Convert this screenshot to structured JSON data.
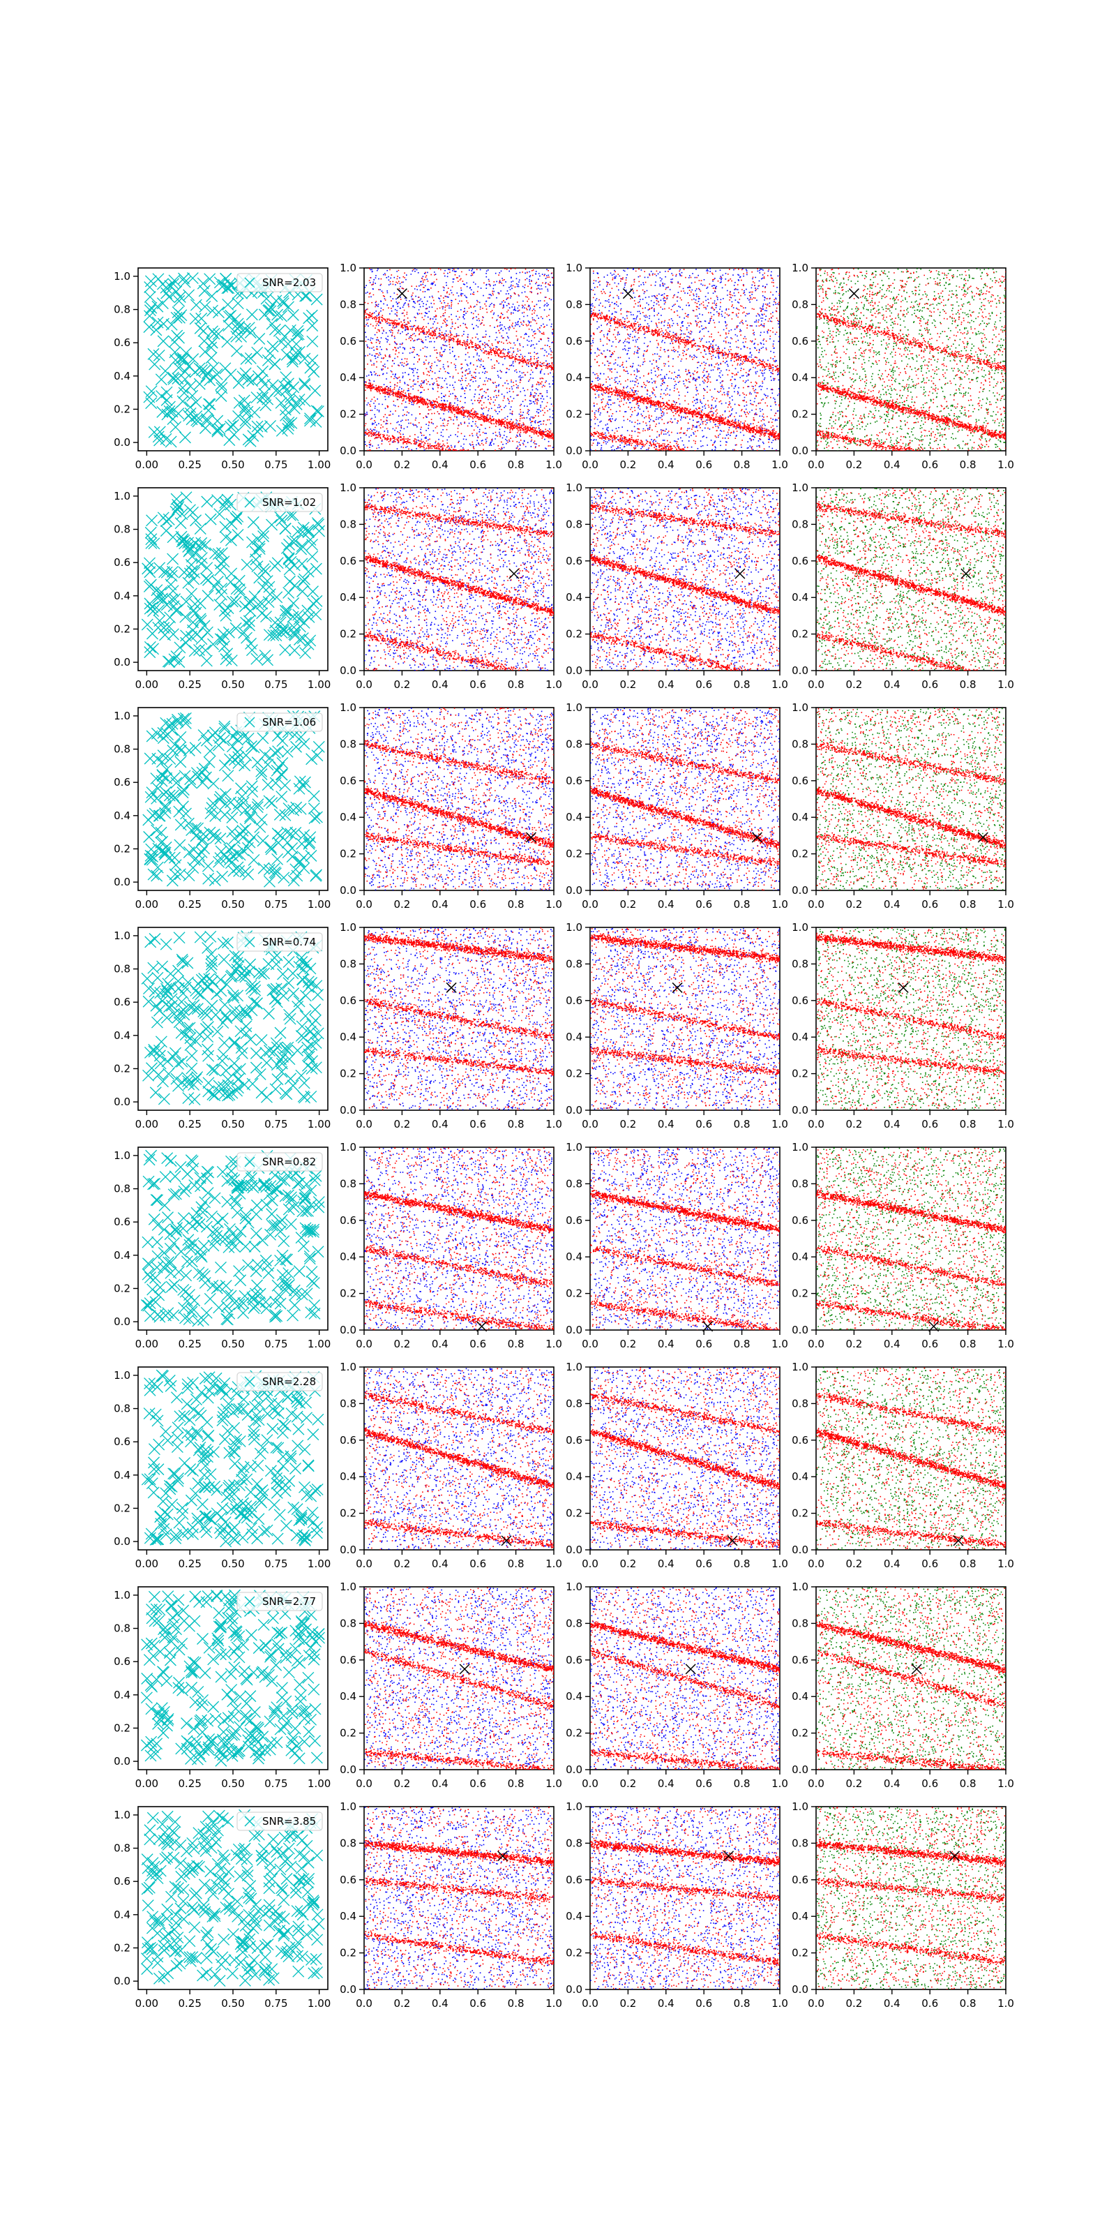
{
  "figure": {
    "rows": 8,
    "cols": 4,
    "colors": {
      "cross": "#00bfbf",
      "red": "#ff0000",
      "blue": "#0000ff",
      "green": "#008000",
      "marker": "#000000",
      "axis": "#000000"
    }
  },
  "chart_data": [
    {
      "row": 0,
      "type": "scatter",
      "title": "",
      "legend": {
        "label": "SNR=2.03",
        "placement": "upper-right"
      },
      "marker": "x",
      "ylim": [
        -0.05,
        1.05
      ],
      "xlim": [
        -0.05,
        1.05
      ],
      "xticks": [
        "0.00",
        "0.25",
        "0.50",
        "0.75",
        "1.00"
      ],
      "yticks": [
        "0.0",
        "0.2",
        "0.4",
        "0.6",
        "0.8",
        "1.0"
      ],
      "n_points": 300,
      "cross_point": [
        0.2,
        0.86
      ],
      "bands": [
        {
          "intercept": 0.36,
          "slope": -0.28
        },
        {
          "intercept": 0.1,
          "slope": -0.2
        },
        {
          "intercept": 0.75,
          "slope": -0.3
        }
      ],
      "density_panels": {
        "xlim": [
          0,
          1
        ],
        "ylim": [
          0,
          1
        ],
        "xticks": [
          "0.0",
          "0.2",
          "0.4",
          "0.6",
          "0.8",
          "1.0"
        ],
        "yticks": [
          "0.0",
          "0.2",
          "0.4",
          "0.6",
          "0.8",
          "1.0"
        ],
        "panel2": [
          "red",
          "blue"
        ],
        "panel3": [
          "red",
          "blue"
        ],
        "panel4": [
          "red",
          "green"
        ]
      }
    },
    {
      "row": 1,
      "type": "scatter",
      "title": "",
      "legend": {
        "label": "SNR=1.02",
        "placement": "upper-right"
      },
      "marker": "x",
      "ylim": [
        -0.05,
        1.05
      ],
      "xlim": [
        -0.05,
        1.05
      ],
      "xticks": [
        "0.00",
        "0.25",
        "0.50",
        "0.75",
        "1.00"
      ],
      "yticks": [
        "0.0",
        "0.2",
        "0.4",
        "0.6",
        "0.8",
        "1.0"
      ],
      "n_points": 300,
      "cross_point": [
        0.79,
        0.53
      ],
      "bands": [
        {
          "intercept": 0.62,
          "slope": -0.3
        },
        {
          "intercept": 0.9,
          "slope": -0.15
        },
        {
          "intercept": 0.2,
          "slope": -0.25
        }
      ],
      "density_panels": {
        "xlim": [
          0,
          1
        ],
        "ylim": [
          0,
          1
        ],
        "xticks": [
          "0.0",
          "0.2",
          "0.4",
          "0.6",
          "0.8",
          "1.0"
        ],
        "yticks": [
          "0.0",
          "0.2",
          "0.4",
          "0.6",
          "0.8",
          "1.0"
        ],
        "panel2": [
          "red",
          "blue"
        ],
        "panel3": [
          "red",
          "blue"
        ],
        "panel4": [
          "red",
          "green"
        ]
      }
    },
    {
      "row": 2,
      "type": "scatter",
      "title": "",
      "legend": {
        "label": "SNR=1.06",
        "placement": "upper-right"
      },
      "marker": "x",
      "ylim": [
        -0.05,
        1.05
      ],
      "xlim": [
        -0.05,
        1.05
      ],
      "xticks": [
        "0.00",
        "0.25",
        "0.50",
        "0.75",
        "1.00"
      ],
      "yticks": [
        "0.0",
        "0.2",
        "0.4",
        "0.6",
        "0.8",
        "1.0"
      ],
      "n_points": 300,
      "cross_point": [
        0.88,
        0.29
      ],
      "bands": [
        {
          "intercept": 0.55,
          "slope": -0.3
        },
        {
          "intercept": 0.8,
          "slope": -0.2
        },
        {
          "intercept": 0.3,
          "slope": -0.15
        }
      ],
      "density_panels": {
        "xlim": [
          0,
          1
        ],
        "ylim": [
          0,
          1
        ],
        "xticks": [
          "0.0",
          "0.2",
          "0.4",
          "0.6",
          "0.8",
          "1.0"
        ],
        "yticks": [
          "0.0",
          "0.2",
          "0.4",
          "0.6",
          "0.8",
          "1.0"
        ],
        "panel2": [
          "red",
          "blue"
        ],
        "panel3": [
          "red",
          "blue"
        ],
        "panel4": [
          "red",
          "green"
        ]
      }
    },
    {
      "row": 3,
      "type": "scatter",
      "title": "",
      "legend": {
        "label": "SNR=0.74",
        "placement": "upper-right"
      },
      "marker": "x",
      "ylim": [
        -0.05,
        1.05
      ],
      "xlim": [
        -0.05,
        1.05
      ],
      "xticks": [
        "0.00",
        "0.25",
        "0.50",
        "0.75",
        "1.00"
      ],
      "yticks": [
        "0.0",
        "0.2",
        "0.4",
        "0.6",
        "0.8",
        "1.0"
      ],
      "n_points": 300,
      "cross_point": [
        0.46,
        0.67
      ],
      "bands": [
        {
          "intercept": 0.95,
          "slope": -0.12
        },
        {
          "intercept": 0.33,
          "slope": -0.12
        },
        {
          "intercept": 0.6,
          "slope": -0.2
        }
      ],
      "density_panels": {
        "xlim": [
          0,
          1
        ],
        "ylim": [
          0,
          1
        ],
        "xticks": [
          "0.0",
          "0.2",
          "0.4",
          "0.6",
          "0.8",
          "1.0"
        ],
        "yticks": [
          "0.0",
          "0.2",
          "0.4",
          "0.6",
          "0.8",
          "1.0"
        ],
        "panel2": [
          "red",
          "blue"
        ],
        "panel3": [
          "red",
          "blue"
        ],
        "panel4": [
          "red",
          "green"
        ]
      }
    },
    {
      "row": 4,
      "type": "scatter",
      "title": "",
      "legend": {
        "label": "SNR=0.82",
        "placement": "upper-right"
      },
      "marker": "x",
      "ylim": [
        -0.05,
        1.05
      ],
      "xlim": [
        -0.05,
        1.05
      ],
      "xticks": [
        "0.00",
        "0.25",
        "0.50",
        "0.75",
        "1.00"
      ],
      "yticks": [
        "0.0",
        "0.2",
        "0.4",
        "0.6",
        "0.8",
        "1.0"
      ],
      "n_points": 300,
      "cross_point": [
        0.62,
        0.02
      ],
      "bands": [
        {
          "intercept": 0.75,
          "slope": -0.2
        },
        {
          "intercept": 0.45,
          "slope": -0.2
        },
        {
          "intercept": 0.15,
          "slope": -0.15
        }
      ],
      "density_panels": {
        "xlim": [
          0,
          1
        ],
        "ylim": [
          0,
          1
        ],
        "xticks": [
          "0.0",
          "0.2",
          "0.4",
          "0.6",
          "0.8",
          "1.0"
        ],
        "yticks": [
          "0.0",
          "0.2",
          "0.4",
          "0.6",
          "0.8",
          "1.0"
        ],
        "panel2": [
          "red",
          "blue"
        ],
        "panel3": [
          "red",
          "blue"
        ],
        "panel4": [
          "red",
          "green"
        ]
      }
    },
    {
      "row": 5,
      "type": "scatter",
      "title": "",
      "legend": {
        "label": "SNR=2.28",
        "placement": "upper-right"
      },
      "marker": "x",
      "ylim": [
        -0.05,
        1.05
      ],
      "xlim": [
        -0.05,
        1.05
      ],
      "xticks": [
        "0.00",
        "0.25",
        "0.50",
        "0.75",
        "1.00"
      ],
      "yticks": [
        "0.0",
        "0.2",
        "0.4",
        "0.6",
        "0.8",
        "1.0"
      ],
      "n_points": 300,
      "cross_point": [
        0.75,
        0.05
      ],
      "bands": [
        {
          "intercept": 0.65,
          "slope": -0.3
        },
        {
          "intercept": 0.15,
          "slope": -0.12
        },
        {
          "intercept": 0.85,
          "slope": -0.2
        }
      ],
      "density_panels": {
        "xlim": [
          0,
          1
        ],
        "ylim": [
          0,
          1
        ],
        "xticks": [
          "0.0",
          "0.2",
          "0.4",
          "0.6",
          "0.8",
          "1.0"
        ],
        "yticks": [
          "0.0",
          "0.2",
          "0.4",
          "0.6",
          "0.8",
          "1.0"
        ],
        "panel2": [
          "red",
          "blue"
        ],
        "panel3": [
          "red",
          "blue"
        ],
        "panel4": [
          "red",
          "green"
        ]
      }
    },
    {
      "row": 6,
      "type": "scatter",
      "title": "",
      "legend": {
        "label": "SNR=2.77",
        "placement": "upper-right"
      },
      "marker": "x",
      "ylim": [
        -0.05,
        1.05
      ],
      "xlim": [
        -0.05,
        1.05
      ],
      "xticks": [
        "0.00",
        "0.25",
        "0.50",
        "0.75",
        "1.00"
      ],
      "yticks": [
        "0.0",
        "0.2",
        "0.4",
        "0.6",
        "0.8",
        "1.0"
      ],
      "n_points": 300,
      "cross_point": [
        0.53,
        0.55
      ],
      "bands": [
        {
          "intercept": 0.8,
          "slope": -0.25
        },
        {
          "intercept": 0.1,
          "slope": -0.1
        },
        {
          "intercept": 0.65,
          "slope": -0.3
        }
      ],
      "density_panels": {
        "xlim": [
          0,
          1
        ],
        "ylim": [
          0,
          1
        ],
        "xticks": [
          "0.0",
          "0.2",
          "0.4",
          "0.6",
          "0.8",
          "1.0"
        ],
        "yticks": [
          "0.0",
          "0.2",
          "0.4",
          "0.6",
          "0.8",
          "1.0"
        ],
        "panel2": [
          "red",
          "blue"
        ],
        "panel3": [
          "red",
          "blue"
        ],
        "panel4": [
          "red",
          "green"
        ]
      }
    },
    {
      "row": 7,
      "type": "scatter",
      "title": "",
      "legend": {
        "label": "SNR=3.85",
        "placement": "upper-right"
      },
      "marker": "x",
      "ylim": [
        -0.05,
        1.05
      ],
      "xlim": [
        -0.05,
        1.05
      ],
      "xticks": [
        "0.00",
        "0.25",
        "0.50",
        "0.75",
        "1.00"
      ],
      "yticks": [
        "0.0",
        "0.2",
        "0.4",
        "0.6",
        "0.8",
        "1.0"
      ],
      "n_points": 300,
      "cross_point": [
        0.73,
        0.73
      ],
      "bands": [
        {
          "intercept": 0.8,
          "slope": -0.1
        },
        {
          "intercept": 0.6,
          "slope": -0.1
        },
        {
          "intercept": 0.3,
          "slope": -0.15
        }
      ],
      "density_panels": {
        "xlim": [
          0,
          1
        ],
        "ylim": [
          0,
          1
        ],
        "xticks": [
          "0.0",
          "0.2",
          "0.4",
          "0.6",
          "0.8",
          "1.0"
        ],
        "yticks": [
          "0.0",
          "0.2",
          "0.4",
          "0.6",
          "0.8",
          "1.0"
        ],
        "panel2": [
          "red",
          "blue"
        ],
        "panel3": [
          "red",
          "blue"
        ],
        "panel4": [
          "red",
          "green"
        ]
      }
    }
  ]
}
